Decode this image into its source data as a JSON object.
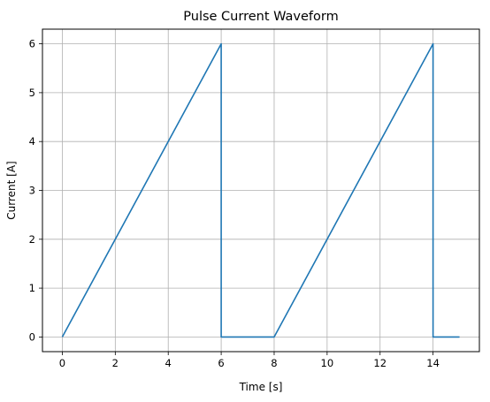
{
  "chart_data": {
    "type": "line",
    "title": "Pulse Current Waveform",
    "xlabel": "Time [s]",
    "ylabel": "Current [A]",
    "xlim": [
      -0.75,
      15.75
    ],
    "ylim": [
      -0.3,
      6.3
    ],
    "xticks": [
      0,
      2,
      4,
      6,
      8,
      10,
      12,
      14
    ],
    "yticks": [
      0,
      1,
      2,
      3,
      4,
      5,
      6
    ],
    "grid": true,
    "series": [
      {
        "color": "#1f77b4",
        "x": [
          0,
          6,
          6,
          8,
          14,
          14,
          15
        ],
        "y": [
          0,
          6,
          0,
          0,
          6,
          0,
          0
        ]
      }
    ]
  },
  "colors": {
    "grid": "#b0b0b0",
    "axes": "#000000",
    "line": "#1f77b4"
  }
}
